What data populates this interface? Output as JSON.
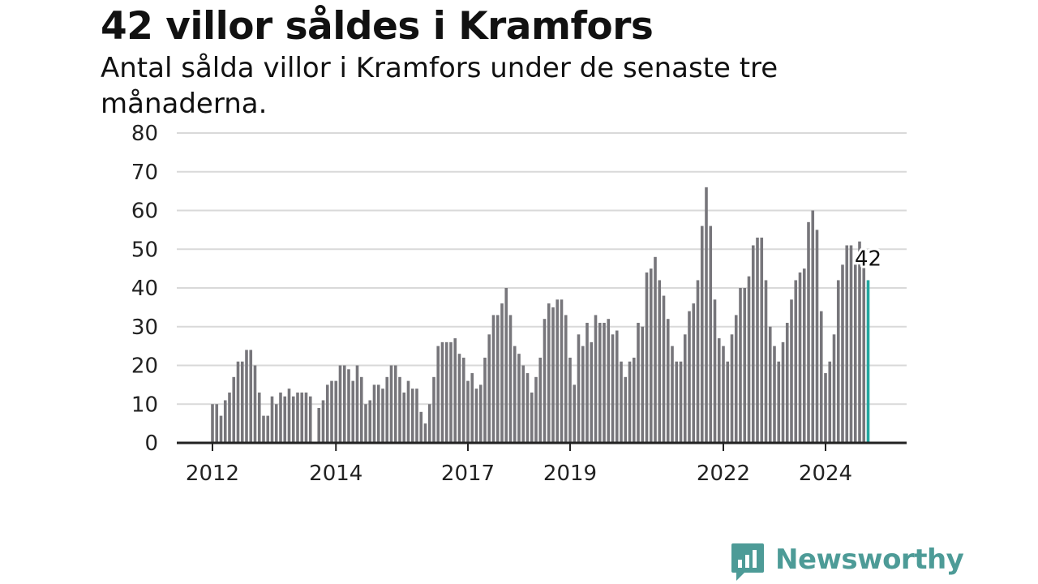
{
  "title": "42 villor såldes i Kramfors",
  "subtitle": "Antal sålda villor i Kramfors under de senaste tre månaderna.",
  "brand": {
    "name": "Newsworthy",
    "color": "#4d9b97"
  },
  "chart_data": {
    "type": "bar",
    "title": "42 villor såldes i Kramfors",
    "subtitle": "Antal sålda villor i Kramfors under de senaste tre månaderna.",
    "xlabel": "",
    "ylabel": "",
    "ylim": [
      0,
      80
    ],
    "yticks": [
      0,
      10,
      20,
      30,
      40,
      50,
      60,
      70,
      80
    ],
    "grid": true,
    "legend": "none",
    "bar_color": "#77767b",
    "highlight_color": "#23a7a0",
    "start_month": "2012-01",
    "xtick_labels": [
      {
        "label": "2012",
        "month": "2012-01"
      },
      {
        "label": "2014",
        "month": "2014-06"
      },
      {
        "label": "2017",
        "month": "2017-01"
      },
      {
        "label": "2019",
        "month": "2019-01"
      },
      {
        "label": "2022",
        "month": "2022-01"
      },
      {
        "label": "2024",
        "month": "2024-01"
      }
    ],
    "values": [
      10,
      10,
      7,
      11,
      13,
      17,
      21,
      21,
      24,
      24,
      20,
      13,
      7,
      7,
      12,
      10,
      13,
      12,
      14,
      12,
      13,
      13,
      13,
      12,
      0,
      9,
      11,
      15,
      16,
      16,
      20,
      20,
      19,
      16,
      20,
      17,
      10,
      11,
      15,
      15,
      14,
      17,
      20,
      20,
      17,
      13,
      16,
      14,
      14,
      8,
      5,
      10,
      17,
      25,
      26,
      26,
      26,
      27,
      23,
      22,
      16,
      18,
      14,
      15,
      22,
      28,
      33,
      33,
      36,
      40,
      33,
      25,
      23,
      20,
      18,
      13,
      17,
      22,
      32,
      36,
      35,
      37,
      37,
      33,
      22,
      15,
      28,
      25,
      31,
      26,
      33,
      31,
      31,
      32,
      28,
      29,
      21,
      17,
      21,
      22,
      31,
      30,
      44,
      45,
      48,
      42,
      38,
      32,
      25,
      21,
      21,
      28,
      34,
      36,
      42,
      56,
      66,
      56,
      37,
      27,
      25,
      21,
      28,
      33,
      40,
      40,
      43,
      51,
      53,
      53,
      42,
      30,
      25,
      21,
      26,
      31,
      37,
      42,
      44,
      45,
      57,
      60,
      55,
      34,
      18,
      21,
      28,
      42,
      46,
      51,
      51,
      46,
      52,
      46,
      42
    ],
    "highlight": {
      "index": 154,
      "value": 42,
      "label": "42"
    }
  }
}
